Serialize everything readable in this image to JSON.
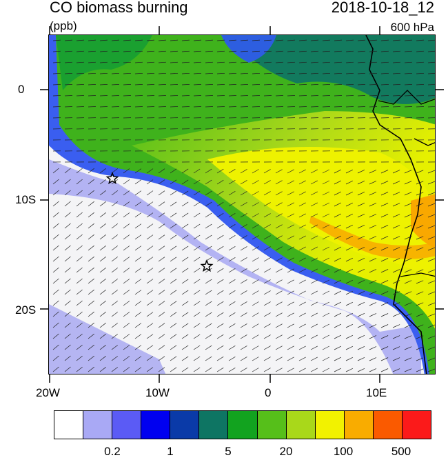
{
  "title": "CO biomass burning",
  "datetime": "2018-10-18_12",
  "units": "(ppb)",
  "level": "600 hPa",
  "axes": {
    "lat_labels": [
      "0",
      "10S",
      "20S"
    ],
    "lon_labels": [
      "20W",
      "10W",
      "0",
      "10E"
    ]
  },
  "colorbar": {
    "colors": [
      "#ffffff",
      "#a9a9f5",
      "#5b5bf5",
      "#0000f0",
      "#0a3aa8",
      "#0e7563",
      "#12a31f",
      "#56bf1a",
      "#a9d81a",
      "#f2f200",
      "#f9ac00",
      "#fa5a00",
      "#fb1a1a"
    ],
    "labels": [
      "0.2",
      "1",
      "5",
      "20",
      "100",
      "500"
    ]
  },
  "markers": {
    "names": [
      "star-marker-north",
      "star-marker-south"
    ]
  }
}
